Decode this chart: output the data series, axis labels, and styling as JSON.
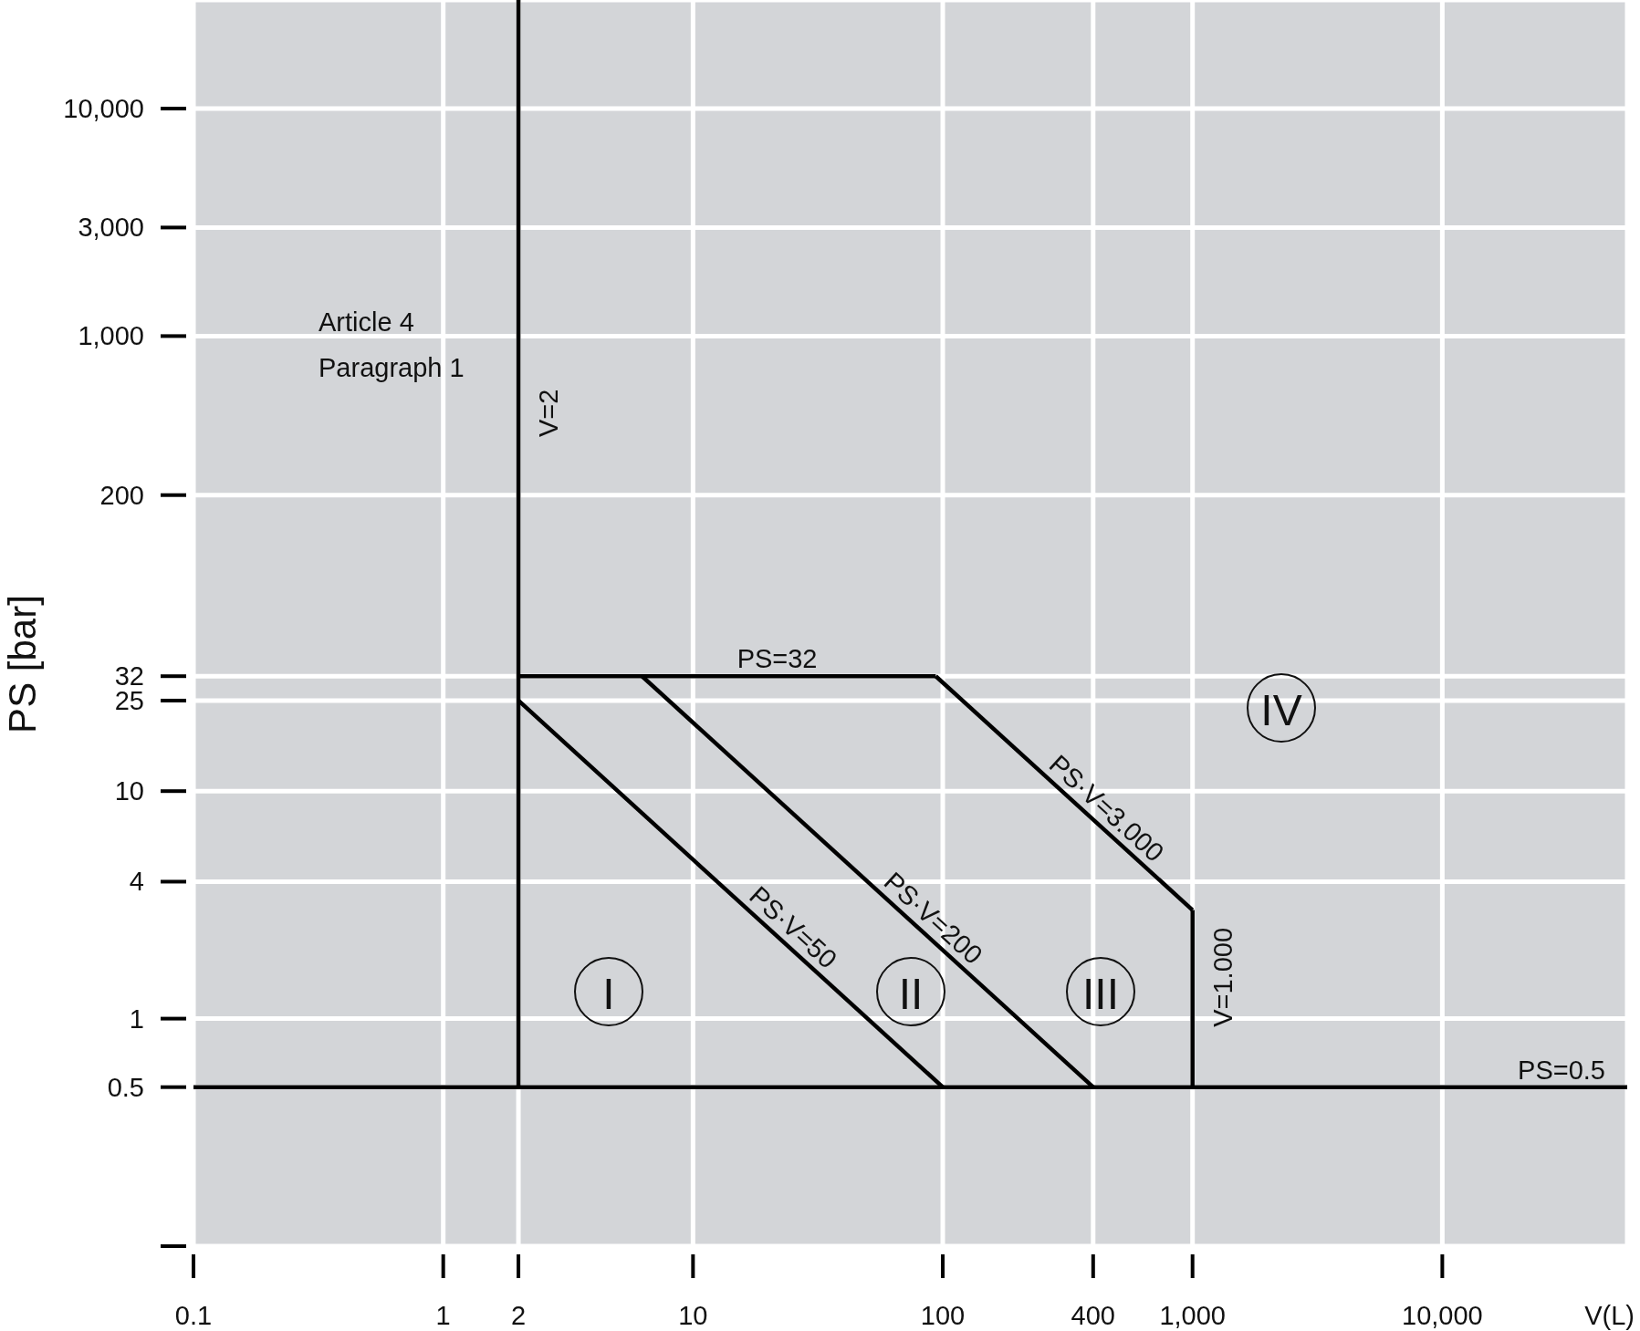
{
  "chart_data": {
    "type": "line",
    "xlabel": "V(L)",
    "ylabel": "PS [bar]",
    "log": "xy",
    "grid": true,
    "marker": "none",
    "xlim": [
      0.1,
      55000
    ],
    "ylim": [
      0.1,
      30000
    ],
    "xticks": [
      0.1,
      1,
      2,
      10,
      100,
      400,
      {
        "value": 1000,
        "label": "1,000"
      },
      {
        "value": 10000,
        "label": "10,000"
      }
    ],
    "yticks": [
      {
        "value": 0.1,
        "label": null
      },
      0.5,
      1,
      4,
      10,
      25,
      32,
      200,
      {
        "value": 1000,
        "label": "1,000"
      },
      {
        "value": 3000,
        "label": "3,000"
      },
      {
        "value": 10000,
        "label": "10,000"
      }
    ],
    "series": [
      {
        "name": "V=2",
        "color": "#000000",
        "x": [
          2,
          2
        ],
        "values": [
          0.5,
          30000
        ]
      },
      {
        "name": "PS=0.5",
        "color": "#000000",
        "x": [
          0.1,
          55000
        ],
        "values": [
          0.5,
          0.5
        ]
      },
      {
        "name": "PS·V=50",
        "color": "#000000",
        "x": [
          2,
          100
        ],
        "values": [
          25,
          0.5
        ]
      },
      {
        "name": "PS·V=200",
        "color": "#000000",
        "x": [
          6.25,
          400
        ],
        "values": [
          32,
          0.5
        ]
      },
      {
        "name": "PS=32",
        "color": "#000000",
        "x": [
          2,
          93.75
        ],
        "values": [
          32,
          32
        ]
      },
      {
        "name": "PS·V=3.000",
        "color": "#000000",
        "x": [
          93.75,
          1000
        ],
        "values": [
          32,
          3
        ]
      },
      {
        "name": "V=1.000",
        "color": "#000000",
        "x": [
          1000,
          1000
        ],
        "values": [
          0.5,
          3
        ]
      }
    ],
    "annotations": [
      "Article 4 Paragraph 1",
      "I",
      "II",
      "III",
      "IV"
    ]
  }
}
